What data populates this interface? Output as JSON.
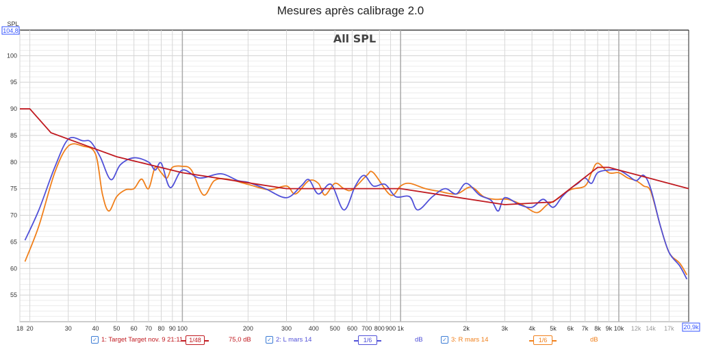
{
  "title": "Mesures après calibrage 2.0",
  "chart_data": {
    "type": "line",
    "title": "All SPL",
    "ylabel": "SPL",
    "ymax_label": "104,8",
    "ylim": [
      50,
      104.8
    ],
    "xlim": [
      18,
      20900
    ],
    "xscale": "log",
    "yticks": [
      55,
      60,
      65,
      70,
      75,
      80,
      85,
      90,
      95,
      100
    ],
    "xticks": [
      {
        "v": 18,
        "l": "18"
      },
      {
        "v": 20,
        "l": "20"
      },
      {
        "v": 30,
        "l": "30"
      },
      {
        "v": 40,
        "l": "40"
      },
      {
        "v": 50,
        "l": "50"
      },
      {
        "v": 60,
        "l": "60"
      },
      {
        "v": 70,
        "l": "70"
      },
      {
        "v": 80,
        "l": "80"
      },
      {
        "v": 90,
        "l": "90"
      },
      {
        "v": 100,
        "l": "100"
      },
      {
        "v": 200,
        "l": "200"
      },
      {
        "v": 300,
        "l": "300"
      },
      {
        "v": 400,
        "l": "400"
      },
      {
        "v": 500,
        "l": "500"
      },
      {
        "v": 600,
        "l": "600"
      },
      {
        "v": 700,
        "l": "700"
      },
      {
        "v": 800,
        "l": "800"
      },
      {
        "v": 900,
        "l": "900"
      },
      {
        "v": 1000,
        "l": "1k"
      },
      {
        "v": 2000,
        "l": "2k"
      },
      {
        "v": 3000,
        "l": "3k"
      },
      {
        "v": 4000,
        "l": "4k"
      },
      {
        "v": 5000,
        "l": "5k"
      },
      {
        "v": 6000,
        "l": "6k"
      },
      {
        "v": 7000,
        "l": "7k"
      },
      {
        "v": 8000,
        "l": "8k"
      },
      {
        "v": 9000,
        "l": "9k"
      },
      {
        "v": 10000,
        "l": "10k"
      },
      {
        "v": 12000,
        "l": "12k"
      },
      {
        "v": 14000,
        "l": "14k"
      },
      {
        "v": 17000,
        "l": "17k"
      }
    ],
    "xmax_label": "20,9k",
    "grid": true,
    "series": [
      {
        "name": "1: Target Target nov. 9 21:11",
        "color": "#c0191f",
        "smoothing": "1/48",
        "value": "75,0 dB",
        "smooth": false,
        "points": [
          [
            18,
            90
          ],
          [
            20,
            90
          ],
          [
            25,
            85.5
          ],
          [
            50,
            81
          ],
          [
            100,
            78
          ],
          [
            300,
            75
          ],
          [
            1000,
            75
          ],
          [
            3000,
            72
          ],
          [
            5000,
            72.5
          ],
          [
            8000,
            79
          ],
          [
            9000,
            79
          ],
          [
            10000,
            78.5
          ],
          [
            20900,
            75
          ]
        ]
      },
      {
        "name": "2: L mars 14",
        "color": "#5050d8",
        "smoothing": "1/6",
        "value": "dB",
        "smooth": true,
        "points": [
          [
            19,
            65.3
          ],
          [
            22,
            71
          ],
          [
            26,
            79
          ],
          [
            30,
            84.3
          ],
          [
            35,
            84
          ],
          [
            38,
            83.8
          ],
          [
            42,
            81
          ],
          [
            47,
            76.7
          ],
          [
            52,
            79.5
          ],
          [
            60,
            80.8
          ],
          [
            70,
            80
          ],
          [
            75,
            78.5
          ],
          [
            80,
            79.8
          ],
          [
            88,
            75.2
          ],
          [
            100,
            78.5
          ],
          [
            120,
            77
          ],
          [
            150,
            77.8
          ],
          [
            180,
            76.5
          ],
          [
            200,
            76.2
          ],
          [
            240,
            75
          ],
          [
            300,
            73.3
          ],
          [
            350,
            75.5
          ],
          [
            380,
            76.7
          ],
          [
            420,
            74
          ],
          [
            480,
            75.8
          ],
          [
            550,
            71
          ],
          [
            620,
            75.5
          ],
          [
            680,
            77.5
          ],
          [
            750,
            75.5
          ],
          [
            850,
            75.8
          ],
          [
            950,
            73.5
          ],
          [
            1100,
            73.5
          ],
          [
            1200,
            71
          ],
          [
            1400,
            73.5
          ],
          [
            1600,
            75
          ],
          [
            1800,
            74
          ],
          [
            2000,
            76
          ],
          [
            2300,
            73.8
          ],
          [
            2600,
            72.8
          ],
          [
            2800,
            70.8
          ],
          [
            3000,
            73.3
          ],
          [
            3500,
            72
          ],
          [
            4000,
            71.5
          ],
          [
            4500,
            73
          ],
          [
            5000,
            71.5
          ],
          [
            5500,
            73.5
          ],
          [
            6000,
            75
          ],
          [
            6500,
            76
          ],
          [
            7000,
            77
          ],
          [
            7500,
            76
          ],
          [
            8000,
            78
          ],
          [
            9000,
            78.5
          ],
          [
            10000,
            78.5
          ],
          [
            11000,
            77.5
          ],
          [
            12000,
            76.5
          ],
          [
            13000,
            77.5
          ],
          [
            14000,
            75
          ],
          [
            15500,
            68
          ],
          [
            17000,
            63
          ],
          [
            19000,
            60.5
          ],
          [
            20500,
            58
          ]
        ]
      },
      {
        "name": "3: R mars 14",
        "color": "#f07f1a",
        "smoothing": "1/6",
        "value": "dB",
        "smooth": true,
        "points": [
          [
            19,
            61.3
          ],
          [
            22,
            68
          ],
          [
            26,
            78
          ],
          [
            30,
            83
          ],
          [
            35,
            83
          ],
          [
            40,
            81.5
          ],
          [
            43,
            74
          ],
          [
            46,
            70.8
          ],
          [
            50,
            73.5
          ],
          [
            55,
            74.8
          ],
          [
            60,
            75
          ],
          [
            65,
            76.8
          ],
          [
            70,
            75
          ],
          [
            75,
            79
          ],
          [
            80,
            78
          ],
          [
            85,
            77
          ],
          [
            90,
            79
          ],
          [
            100,
            79.2
          ],
          [
            110,
            78.5
          ],
          [
            125,
            73.8
          ],
          [
            140,
            76.5
          ],
          [
            160,
            76.8
          ],
          [
            200,
            75.8
          ],
          [
            250,
            74.8
          ],
          [
            300,
            75.5
          ],
          [
            330,
            74
          ],
          [
            380,
            76.5
          ],
          [
            420,
            76
          ],
          [
            450,
            73.8
          ],
          [
            500,
            76
          ],
          [
            550,
            75
          ],
          [
            600,
            74.8
          ],
          [
            700,
            77.5
          ],
          [
            750,
            78
          ],
          [
            900,
            73.8
          ],
          [
            1000,
            75.5
          ],
          [
            1100,
            76
          ],
          [
            1300,
            75
          ],
          [
            1500,
            74.5
          ],
          [
            1800,
            74
          ],
          [
            2100,
            75.3
          ],
          [
            2400,
            73.5
          ],
          [
            2700,
            73
          ],
          [
            3100,
            73
          ],
          [
            3600,
            72
          ],
          [
            4200,
            70.5
          ],
          [
            4700,
            72
          ],
          [
            5200,
            73
          ],
          [
            6000,
            74.8
          ],
          [
            7000,
            75.5
          ],
          [
            7500,
            78
          ],
          [
            8000,
            79.8
          ],
          [
            9000,
            78
          ],
          [
            10000,
            78
          ],
          [
            11000,
            77
          ],
          [
            12000,
            76.5
          ],
          [
            13000,
            75.5
          ],
          [
            14000,
            74.5
          ],
          [
            15500,
            68
          ],
          [
            17000,
            63
          ],
          [
            19000,
            61
          ],
          [
            20500,
            58.8
          ]
        ]
      }
    ]
  }
}
